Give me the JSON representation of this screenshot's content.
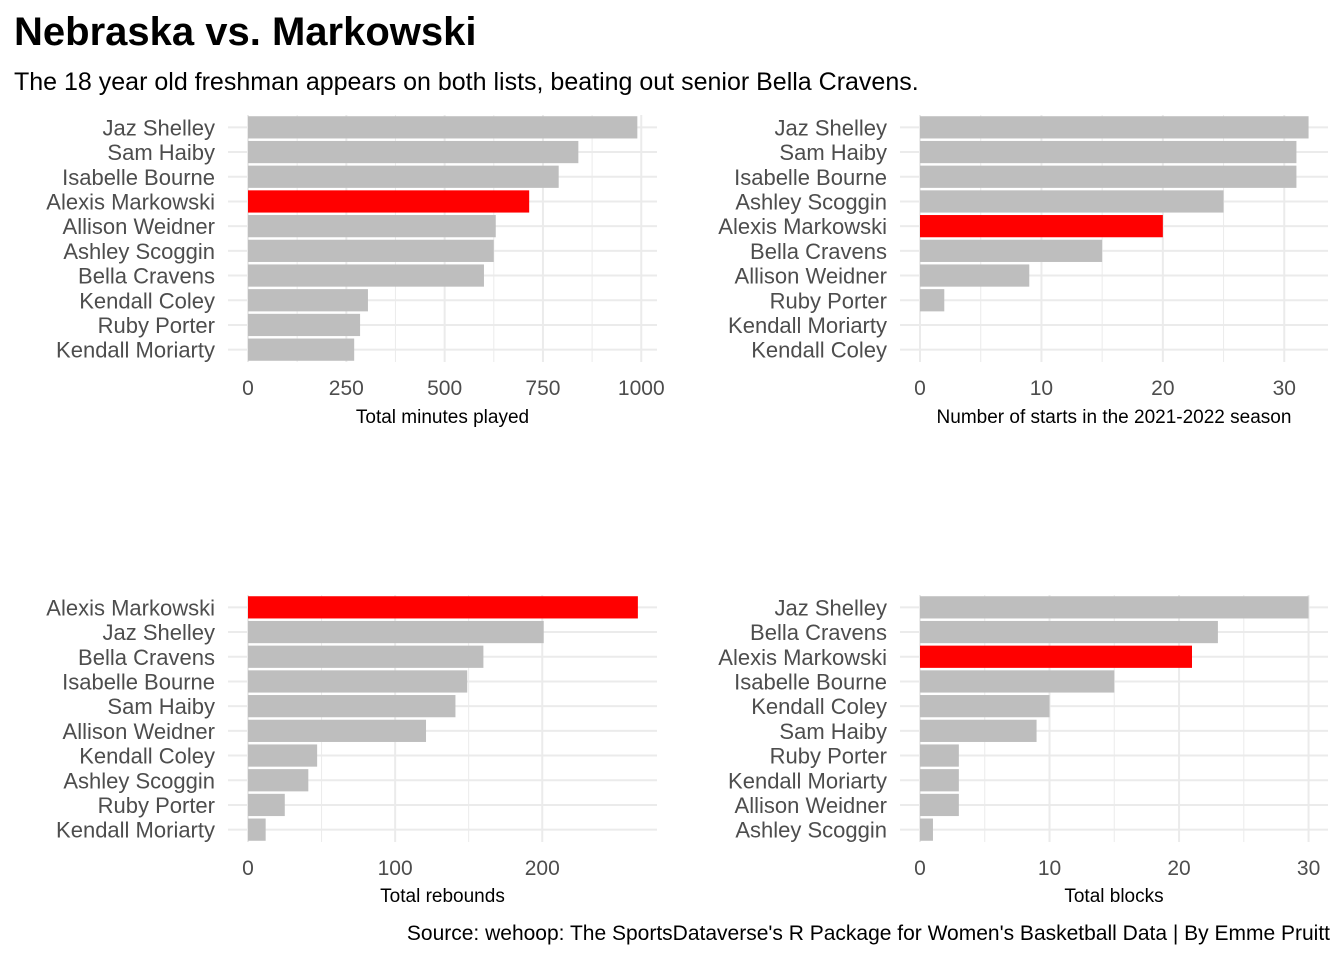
{
  "title": "Nebraska vs. Markowski",
  "subtitle": "The 18 year old freshman appears on both lists, beating out senior Bella Cravens.",
  "caption": "Source: wehoop: The SportsDataverse's R Package for Women's Basketball Data | By Emme Pruitt",
  "colors": {
    "highlight": "#ff0000",
    "bar": "#bebebe",
    "grid": "#ebebeb"
  },
  "highlight_player": "Alexis Markowski",
  "chart_data": [
    {
      "type": "bar",
      "orientation": "horizontal",
      "categories": [
        "Jaz Shelley",
        "Sam Haiby",
        "Isabelle Bourne",
        "Alexis Markowski",
        "Allison Weidner",
        "Ashley Scoggin",
        "Bella Cravens",
        "Kendall Coley",
        "Ruby Porter",
        "Kendall Moriarty"
      ],
      "values": [
        990,
        840,
        790,
        715,
        630,
        625,
        600,
        305,
        285,
        270
      ],
      "xlabel": "Total minutes played",
      "ylabel": "",
      "xlim": [
        0,
        1040
      ],
      "ticks": [
        0,
        250,
        500,
        750,
        1000
      ],
      "grid": true
    },
    {
      "type": "bar",
      "orientation": "horizontal",
      "categories": [
        "Jaz Shelley",
        "Sam Haiby",
        "Isabelle Bourne",
        "Ashley Scoggin",
        "Alexis Markowski",
        "Bella Cravens",
        "Allison Weidner",
        "Ruby Porter",
        "Kendall Moriarty",
        "Kendall Coley"
      ],
      "values": [
        32,
        31,
        31,
        25,
        20,
        15,
        9,
        2,
        0,
        0
      ],
      "xlabel": "Number of starts in the 2021-2022 season",
      "ylabel": "",
      "xlim": [
        0,
        33.6
      ],
      "ticks": [
        0,
        10,
        20,
        30
      ],
      "grid": true
    },
    {
      "type": "bar",
      "orientation": "horizontal",
      "categories": [
        "Alexis Markowski",
        "Jaz Shelley",
        "Bella Cravens",
        "Isabelle Bourne",
        "Sam Haiby",
        "Allison Weidner",
        "Kendall Coley",
        "Ashley Scoggin",
        "Ruby Porter",
        "Kendall Moriarty"
      ],
      "values": [
        265,
        201,
        160,
        149,
        141,
        121,
        47,
        41,
        25,
        12
      ],
      "xlabel": "Total rebounds",
      "ylabel": "",
      "xlim": [
        0,
        278
      ],
      "ticks": [
        0,
        100,
        200
      ],
      "grid": true
    },
    {
      "type": "bar",
      "orientation": "horizontal",
      "categories": [
        "Jaz Shelley",
        "Bella Cravens",
        "Alexis Markowski",
        "Isabelle Bourne",
        "Kendall Coley",
        "Sam Haiby",
        "Ruby Porter",
        "Kendall Moriarty",
        "Allison Weidner",
        "Ashley Scoggin"
      ],
      "values": [
        30,
        23,
        21,
        15,
        10,
        9,
        3,
        3,
        3,
        1
      ],
      "xlabel": "Total blocks",
      "ylabel": "",
      "xlim": [
        0,
        31.5
      ],
      "ticks": [
        0,
        10,
        20,
        30
      ],
      "grid": true
    }
  ]
}
